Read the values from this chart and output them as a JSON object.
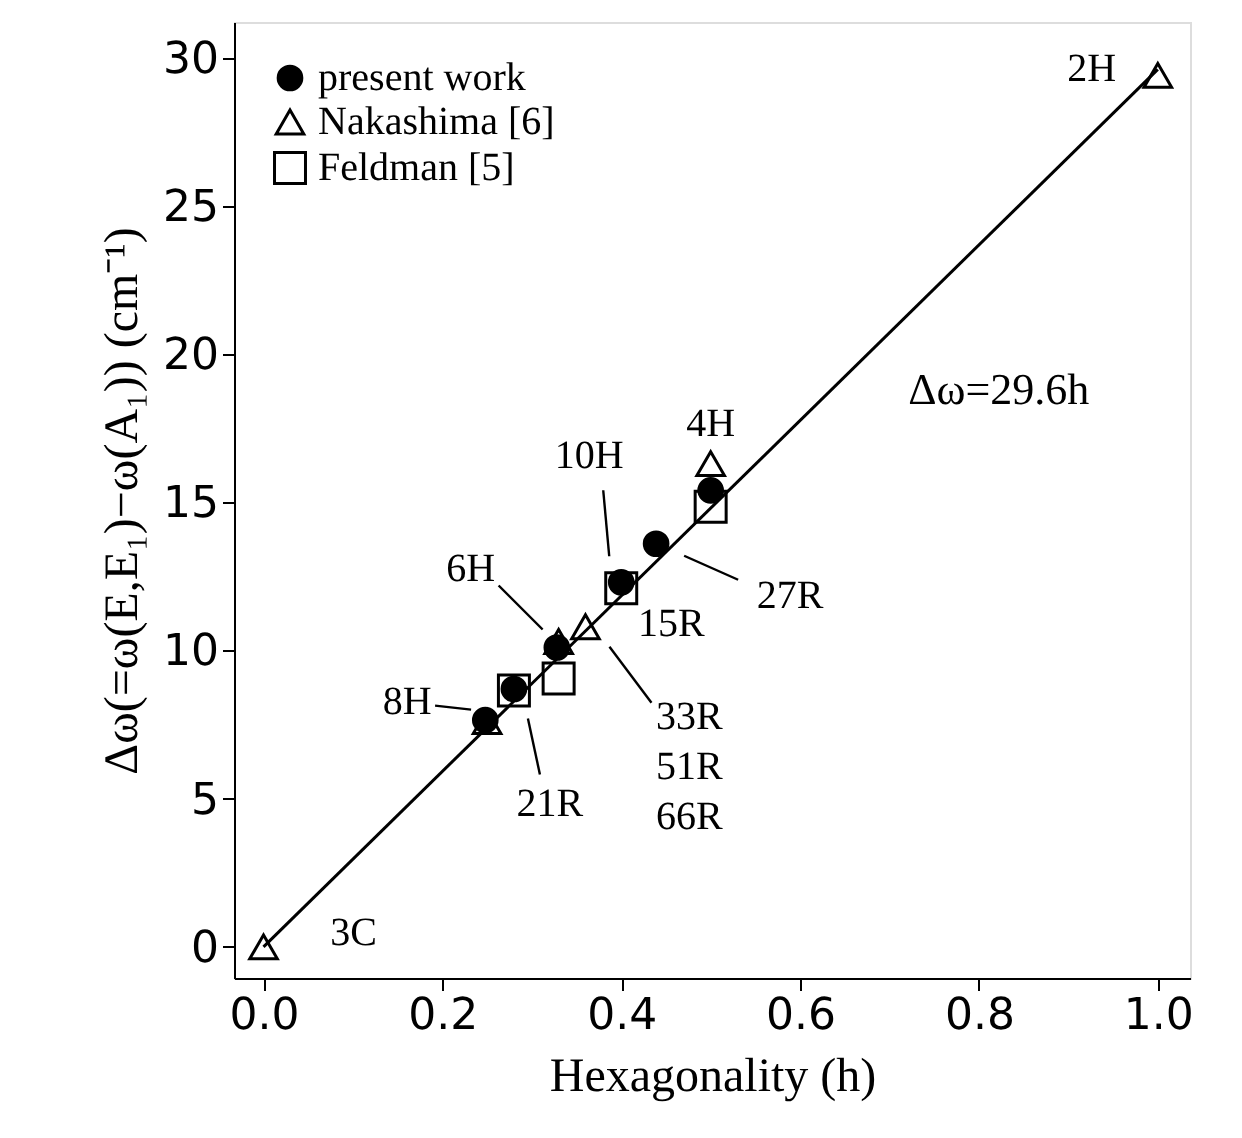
{
  "chart_data": {
    "type": "scatter",
    "xlabel": "Hexagonality (h)",
    "ylabel": "Δω(=ω(E,E₁)−ω(A₁)) (cm⁻¹)",
    "xlim": [
      -0.033,
      1.036
    ],
    "ylim": [
      -1.05,
      31.2
    ],
    "xticks": [
      {
        "value": 0,
        "label": "0.0"
      },
      {
        "value": 0.2,
        "label": "0.2"
      },
      {
        "value": 0.4,
        "label": "0.4"
      },
      {
        "value": 0.6,
        "label": "0.6"
      },
      {
        "value": 0.8,
        "label": "0.8"
      },
      {
        "value": 1,
        "label": "1.0"
      }
    ],
    "yticks": [
      0,
      5,
      10,
      15,
      20,
      25,
      30
    ],
    "grid": false,
    "legend": "top left",
    "series": [
      {
        "name": "present work",
        "color": "#000000",
        "marker": "circle",
        "x": [
          0.248,
          0.28,
          0.328,
          0.4,
          0.439,
          0.5
        ],
        "values": [
          7.65,
          8.7,
          10.1,
          12.3,
          13.6,
          15.4
        ]
      },
      {
        "name": "Nakashima [6]",
        "color": "#000000",
        "marker": "triangle",
        "x": [
          0,
          0.25,
          0.33,
          0.36,
          0.5,
          1.0
        ],
        "values": [
          0,
          7.6,
          10.3,
          10.8,
          16.3,
          29.4
        ]
      },
      {
        "name": "Feldman [5]",
        "color": "#000000",
        "marker": "square",
        "x": [
          0.28,
          0.33,
          0.4,
          0.5
        ],
        "values": [
          8.65,
          9.05,
          12.1,
          14.85
        ]
      },
      {
        "type": "line",
        "color": "#000000",
        "marker": "none",
        "x": [
          0,
          1
        ],
        "values": [
          0,
          29.6
        ]
      }
    ],
    "annotations": [
      {
        "text": "2H",
        "x": 1.0,
        "y": 29.4
      },
      {
        "text": "4H",
        "x": 0.5,
        "y": 16.3
      },
      {
        "text": "10H",
        "x": 0.4,
        "y": 12.3
      },
      {
        "text": "6H",
        "x": 0.33,
        "y": 10.1
      },
      {
        "text": "8H",
        "x": 0.25,
        "y": 7.6
      },
      {
        "text": "3C",
        "x": 0,
        "y": 0
      },
      {
        "text": "15R",
        "x": 0.4,
        "y": 12.1
      },
      {
        "text": "27R",
        "x": 0.439,
        "y": 13.6
      },
      {
        "text": "33R\n51R\n66R",
        "x": 0.36,
        "y": 10.8
      },
      {
        "text": "21R",
        "x": 0.28,
        "y": 8.65
      },
      "Δω=29.6h"
    ]
  }
}
